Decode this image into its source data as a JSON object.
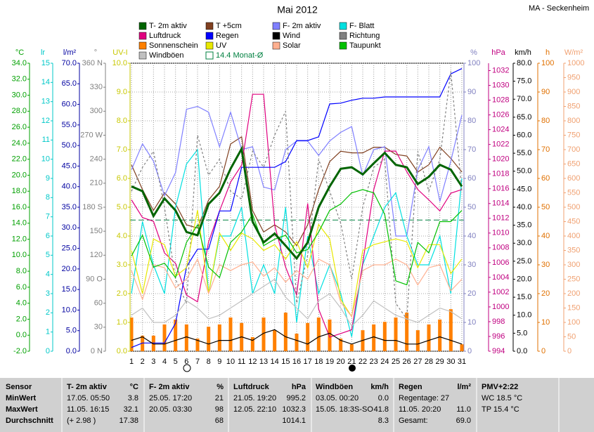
{
  "chart_data": {
    "type": "line",
    "title": "Mai 2012",
    "station": "MA - Seckenheim",
    "x": [
      1,
      2,
      3,
      4,
      5,
      6,
      7,
      8,
      9,
      10,
      11,
      12,
      13,
      14,
      15,
      16,
      17,
      18,
      19,
      20,
      21,
      22,
      23,
      24,
      25,
      26,
      27,
      28,
      29,
      30,
      31
    ],
    "xlim": [
      1,
      31
    ],
    "grid": true,
    "axes": [
      {
        "label": "°C",
        "side": "left",
        "color": "#00a000",
        "lim": [
          -2,
          34
        ],
        "ticks": [
          {
            "value": -2,
            "label": "-2.0"
          },
          {
            "value": 0,
            "label": "0.0"
          },
          {
            "value": 2,
            "label": "2.0"
          },
          {
            "value": 4,
            "label": "4.0"
          },
          {
            "value": 6,
            "label": "6.0"
          },
          {
            "value": 8,
            "label": "8.0"
          },
          {
            "value": 10,
            "label": "10.0"
          },
          {
            "value": 12,
            "label": "12.0"
          },
          {
            "value": 14,
            "label": "14.0"
          },
          {
            "value": 16,
            "label": "16.0"
          },
          {
            "value": 18,
            "label": "18.0"
          },
          {
            "value": 20,
            "label": "20.0"
          },
          {
            "value": 22,
            "label": "22.0"
          },
          {
            "value": 24,
            "label": "24.0"
          },
          {
            "value": 26,
            "label": "26.0"
          },
          {
            "value": 28,
            "label": "28.0"
          },
          {
            "value": 30,
            "label": "30.0"
          },
          {
            "value": 32,
            "label": "32.0"
          },
          {
            "value": 34,
            "label": "34.0"
          }
        ]
      },
      {
        "label": "lr",
        "side": "left",
        "color": "#00c8c8",
        "lim": [
          0,
          15
        ],
        "ticks": [
          0,
          1,
          2,
          3,
          4,
          5,
          6,
          7,
          8,
          9,
          10,
          11,
          12,
          13,
          14,
          15
        ]
      },
      {
        "label": "l/m²",
        "side": "left",
        "color": "#0000a0",
        "lim": [
          0,
          70
        ],
        "ticks": [
          {
            "value": 0,
            "label": "0.0"
          },
          {
            "value": 5,
            "label": "5.0"
          },
          {
            "value": 10,
            "label": "10.0"
          },
          {
            "value": 15,
            "label": "15.0"
          },
          {
            "value": 20,
            "label": "20.0"
          },
          {
            "value": 25,
            "label": "25.0"
          },
          {
            "value": 30,
            "label": "30.0"
          },
          {
            "value": 35,
            "label": "35.0"
          },
          {
            "value": 40,
            "label": "40.0"
          },
          {
            "value": 45,
            "label": "45.0"
          },
          {
            "value": 50,
            "label": "50.0"
          },
          {
            "value": 55,
            "label": "55.0"
          },
          {
            "value": 60,
            "label": "60.0"
          },
          {
            "value": 65,
            "label": "65.0"
          },
          {
            "value": 70,
            "label": "70.0"
          }
        ]
      },
      {
        "label": "°",
        "side": "left",
        "color": "#808080",
        "lim": [
          0,
          360
        ],
        "ticks": [
          {
            "value": 0,
            "label": "0 N"
          },
          30,
          60,
          {
            "value": 90,
            "label": "90 O"
          },
          120,
          150,
          {
            "value": 180,
            "label": "180 S"
          },
          210,
          240,
          {
            "value": 270,
            "label": "270 W"
          },
          300,
          330,
          {
            "value": 360,
            "label": "360 N"
          }
        ]
      },
      {
        "label": "UV-I",
        "side": "left",
        "color": "#c8c800",
        "lim": [
          0,
          10
        ],
        "ticks": [
          {
            "value": 0,
            "label": "0.0"
          },
          {
            "value": 1,
            "label": "1.0"
          },
          {
            "value": 2,
            "label": "2.0"
          },
          {
            "value": 3,
            "label": "3.0"
          },
          {
            "value": 4,
            "label": "4.0"
          },
          {
            "value": 5,
            "label": "5.0"
          },
          {
            "value": 6,
            "label": "6.0"
          },
          {
            "value": 7,
            "label": "7.0"
          },
          {
            "value": 8,
            "label": "8.0"
          },
          {
            "value": 9,
            "label": "9.0"
          },
          {
            "value": 10,
            "label": "10.0"
          }
        ]
      },
      {
        "label": "%",
        "side": "right",
        "color": "#8080c0",
        "lim": [
          0,
          100
        ],
        "ticks": [
          0,
          10,
          20,
          30,
          40,
          50,
          60,
          70,
          80,
          90,
          100
        ]
      },
      {
        "label": "hPa",
        "side": "right",
        "color": "#c00080",
        "lim": [
          994,
          1033
        ],
        "ticks": [
          994,
          996,
          998,
          1000,
          1002,
          1004,
          1006,
          1008,
          1010,
          1012,
          1014,
          1016,
          1018,
          1020,
          1022,
          1024,
          1026,
          1028,
          1030,
          1032
        ]
      },
      {
        "label": "km/h",
        "side": "right",
        "color": "#000000",
        "lim": [
          0,
          80
        ],
        "ticks": [
          {
            "value": 0,
            "label": "0.0"
          },
          {
            "value": 5,
            "label": "5.0"
          },
          {
            "value": 10,
            "label": "10.0"
          },
          {
            "value": 15,
            "label": "15.0"
          },
          {
            "value": 20,
            "label": "20.0"
          },
          {
            "value": 25,
            "label": "25.0"
          },
          {
            "value": 30,
            "label": "30.0"
          },
          {
            "value": 35,
            "label": "35.0"
          },
          {
            "value": 40,
            "label": "40.0"
          },
          {
            "value": 45,
            "label": "45.0"
          },
          {
            "value": 50,
            "label": "50.0"
          },
          {
            "value": 55,
            "label": "55.0"
          },
          {
            "value": 60,
            "label": "60.0"
          },
          {
            "value": 65,
            "label": "65.0"
          },
          {
            "value": 70,
            "label": "70.0"
          },
          {
            "value": 75,
            "label": "75.0"
          },
          {
            "value": 80,
            "label": "80.0"
          }
        ]
      },
      {
        "label": "h",
        "side": "right",
        "color": "#e07000",
        "lim": [
          0,
          100
        ],
        "ticks": [
          0,
          10,
          20,
          30,
          40,
          50,
          60,
          70,
          80,
          90,
          100
        ]
      },
      {
        "label": "W/m²",
        "side": "right",
        "color": "#f0a070",
        "lim": [
          0,
          1000
        ],
        "ticks": [
          0,
          50,
          100,
          150,
          200,
          250,
          300,
          350,
          400,
          450,
          500,
          550,
          600,
          650,
          700,
          750,
          800,
          850,
          900,
          950,
          1000
        ]
      }
    ],
    "series": [
      {
        "name": "T- 2m aktiv",
        "color": "#006400",
        "axis": 0,
        "style": "bold",
        "values": [
          18.6,
          18.0,
          14.9,
          17.1,
          15.6,
          12.9,
          12.5,
          16.4,
          17.8,
          20.8,
          23.3,
          14.2,
          11.6,
          12.7,
          11.2,
          9.6,
          11.6,
          16.0,
          18.6,
          20.8,
          21.0,
          20.1,
          21.5,
          22.8,
          21.3,
          21.0,
          18.9,
          19.8,
          21.3,
          20.7,
          18.6
        ]
      },
      {
        "name": "T +5cm",
        "color": "#804020",
        "axis": 0,
        "style": "line",
        "values": [
          21.3,
          18.2,
          15.6,
          17.8,
          16.4,
          13.8,
          13.4,
          16.9,
          18.6,
          23.9,
          24.8,
          15.6,
          12.9,
          13.8,
          12.9,
          11.2,
          13.8,
          18.2,
          21.7,
          23.0,
          22.8,
          22.8,
          23.5,
          23.5,
          22.6,
          22.4,
          20.4,
          21.3,
          23.5,
          22.1,
          20.4
        ]
      },
      {
        "name": "F- 2m aktiv",
        "color": "#8080ff",
        "axis": 5,
        "style": "line",
        "values": [
          63,
          72,
          66,
          54,
          62,
          84,
          85,
          83,
          71,
          83,
          70,
          71,
          57,
          56,
          70,
          73,
          73,
          68,
          73,
          76,
          78,
          61,
          70,
          71,
          40,
          40,
          63,
          71,
          52,
          66,
          82
        ]
      },
      {
        "name": "F- Blatt",
        "color": "#00e0e0",
        "axis": 5,
        "style": "line",
        "values": [
          20,
          45,
          30,
          20,
          50,
          65,
          70,
          20,
          40,
          40,
          50,
          20,
          30,
          20,
          50,
          10,
          40,
          20,
          30,
          20,
          5,
          30,
          40,
          50,
          55,
          40,
          30,
          30,
          40,
          20,
          60
        ]
      },
      {
        "name": "Luftdruck",
        "color": "#e0007f",
        "axis": 6,
        "style": "line",
        "values": [
          1014.5,
          1012.1,
          1011.6,
          1007.3,
          1005.9,
          1001.6,
          1000.7,
          1008.8,
          1013.0,
          1016.9,
          1019.2,
          1028.8,
          1028.8,
          1011.1,
          1005.4,
          1001.6,
          1014.0,
          999.7,
          995.9,
          996.4,
          996.9,
          1005.9,
          1015.9,
          1021.1,
          1021.1,
          1018.3,
          1015.9,
          1014.5,
          1013.0,
          1015.4,
          1015.9
        ]
      },
      {
        "name": "Regen",
        "color": "#0000ff",
        "axis": 2,
        "style": "line",
        "values": [
          0.9,
          2.0,
          2.0,
          2.0,
          6.8,
          20.5,
          24.8,
          24.8,
          34.1,
          34.1,
          44.7,
          44.7,
          44.7,
          44.7,
          46.1,
          51.2,
          51.2,
          52.1,
          60.1,
          60.3,
          61.0,
          61.5,
          61.5,
          61.8,
          61.8,
          61.8,
          61.8,
          61.8,
          61.8,
          67.4,
          68.7
        ]
      },
      {
        "name": "Wind",
        "color": "#000000",
        "axis": 7,
        "style": "line",
        "values": [
          3,
          4,
          2,
          2,
          3,
          4,
          3,
          2,
          3,
          3,
          4,
          3,
          5,
          6,
          4,
          3,
          2,
          4,
          5,
          3,
          2,
          3,
          4,
          3,
          3,
          2,
          2,
          3,
          4,
          3,
          2
        ]
      },
      {
        "name": "Richtung",
        "color": "#808080",
        "axis": 3,
        "style": "dash",
        "values": [
          200,
          230,
          250,
          180,
          90,
          60,
          270,
          220,
          240,
          200,
          190,
          250,
          230,
          270,
          300,
          60,
          120,
          240,
          200,
          160,
          90,
          180,
          230,
          240,
          60,
          40,
          250,
          200,
          240,
          350,
          200
        ]
      },
      {
        "name": "Sonnenschein",
        "color": "#ff8000",
        "axis": 8,
        "style": "bar",
        "values": [
          11.7,
          5.4,
          5.4,
          9.3,
          11.0,
          9.3,
          4.4,
          8.5,
          9.3,
          11.7,
          9.8,
          4.9,
          11.7,
          7.3,
          13.4,
          6.1,
          9.8,
          11.7,
          11.0,
          4.4,
          2.4,
          7.3,
          9.3,
          10.2,
          11.7,
          13.4,
          7.3,
          9.3,
          11.0,
          14.6,
          2.4
        ]
      },
      {
        "name": "UV",
        "color": "#e8e800",
        "axis": 4,
        "style": "line",
        "values": [
          3.5,
          2.0,
          3.9,
          3.7,
          2.6,
          2.9,
          4.9,
          2.0,
          4.1,
          3.5,
          4.1,
          3.9,
          3.5,
          3.7,
          3.2,
          3.8,
          2.9,
          4.4,
          3.9,
          1.8,
          1.2,
          3.5,
          3.7,
          3.8,
          3.9,
          3.8,
          2.9,
          3.7,
          3.7,
          2.7,
          3.2
        ]
      },
      {
        "name": "Solar",
        "color": "#ffb090",
        "axis": 9,
        "style": "line",
        "values": [
          280,
          180,
          300,
          290,
          220,
          250,
          320,
          200,
          300,
          280,
          300,
          310,
          260,
          290,
          240,
          280,
          250,
          320,
          300,
          170,
          120,
          280,
          300,
          300,
          320,
          300,
          230,
          290,
          300,
          210,
          250
        ]
      },
      {
        "name": "Taupunkt",
        "color": "#00c000",
        "axis": 0,
        "style": "line",
        "values": [
          9.9,
          12.5,
          8.5,
          9.0,
          7.2,
          11.6,
          13.8,
          8.5,
          7.2,
          11.6,
          12.9,
          15.1,
          11.2,
          12.0,
          12.5,
          10.3,
          10.7,
          12.9,
          15.6,
          16.4,
          17.8,
          18.2,
          17.8,
          15.1,
          6.8,
          6.3,
          11.6,
          10.3,
          14.2,
          14.2,
          15.6
        ]
      },
      {
        "name": "Windböen",
        "color": "#c0c0c0",
        "axis": 7,
        "style": "line",
        "values": [
          10,
          12,
          8,
          8,
          10,
          14,
          12,
          9,
          10,
          12,
          14,
          16,
          18,
          20,
          15,
          12,
          9,
          14,
          16,
          12,
          7,
          10,
          14,
          12,
          10,
          9,
          8,
          10,
          12,
          11,
          9
        ]
      }
    ],
    "monthly_mean": {
      "label": "14.4 Monat-Ø",
      "value": 14.4,
      "axis": 0,
      "color": "#008040"
    }
  },
  "table": {
    "header": [
      "Sensor",
      "T- 2m aktiv",
      "°C",
      "F- 2m aktiv",
      "%",
      "Luftdruck",
      "hPa",
      "Windböen",
      "km/h",
      "Regen",
      "l/m²",
      "PMV+2:22"
    ],
    "rows": [
      [
        "MinWert",
        "17.05. 05:50",
        "3.8",
        "25.05. 17:20",
        "21",
        "21.05. 19:20",
        "995.2",
        "03.05. 00:20",
        "0.0",
        "Regentage: 27",
        null,
        "WC 18.5 °C"
      ],
      [
        "MaxWert",
        "11.05. 16:15",
        "32.1",
        "20.05. 03:30",
        "98",
        "12.05. 22:10",
        "1032.3",
        "15.05. 18:3S-SO",
        "41.8",
        "11.05. 20:20",
        "11.0",
        "TP 15.4 °C"
      ],
      [
        "Durchschnitt",
        "(+ 2.98 )",
        "17.38",
        null,
        "68",
        null,
        "1014.1",
        null,
        "8.3",
        "Gesamt:",
        "69.0",
        null
      ]
    ]
  }
}
